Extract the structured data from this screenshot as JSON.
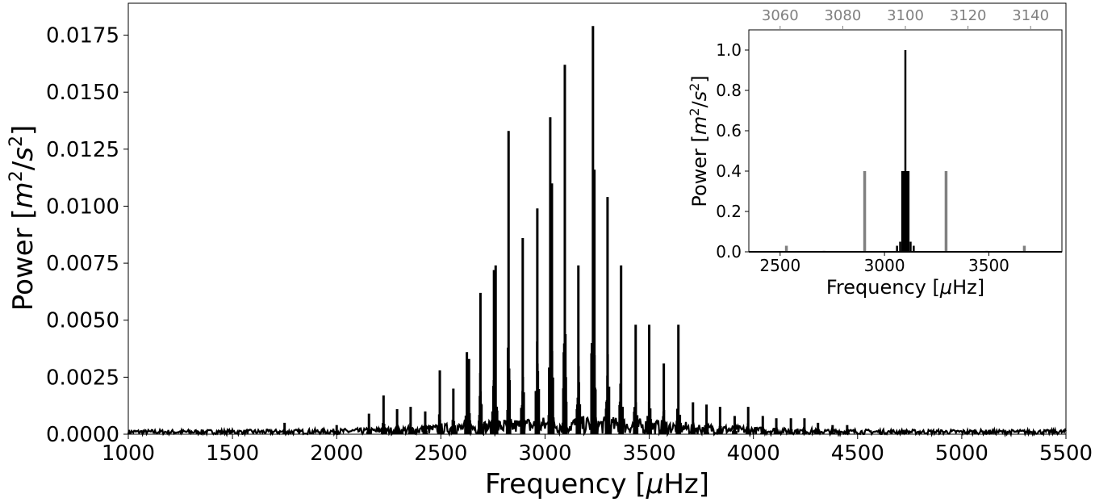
{
  "chart_data": [
    {
      "type": "line",
      "title": "",
      "xlabel": {
        "prefix": "Frequency [",
        "mu": "μ",
        "suffix": "Hz]"
      },
      "ylabel": {
        "prefix": "Power [",
        "base1": "m",
        "exp1": "2",
        "slash": "/",
        "base2": "s",
        "exp2": "2",
        "suffix": "]"
      },
      "xlim": [
        1000,
        5500
      ],
      "ylim": [
        0,
        0.0189
      ],
      "xticks": [
        1000,
        1500,
        2000,
        2500,
        3000,
        3500,
        4000,
        4500,
        5000,
        5500
      ],
      "xtick_labels": [
        "1000",
        "1500",
        "2000",
        "2500",
        "3000",
        "3500",
        "4000",
        "4500",
        "5000",
        "5500"
      ],
      "yticks": [
        0,
        0.0025,
        0.005,
        0.0075,
        0.01,
        0.0125,
        0.015,
        0.0175
      ],
      "ytick_labels": [
        "0.0000",
        "0.0025",
        "0.0050",
        "0.0075",
        "0.0100",
        "0.0125",
        "0.0150",
        "0.0175"
      ],
      "series": [
        {
          "color": "#000000",
          "noise_floor": 0.0002,
          "peaks": [
            {
              "x": 2155,
              "y": 0.0009
            },
            {
              "x": 2225,
              "y": 0.0017
            },
            {
              "x": 2290,
              "y": 0.0011
            },
            {
              "x": 2355,
              "y": 0.0012
            },
            {
              "x": 2425,
              "y": 0.001
            },
            {
              "x": 2495,
              "y": 0.0028
            },
            {
              "x": 2560,
              "y": 0.002
            },
            {
              "x": 2625,
              "y": 0.0036
            },
            {
              "x": 2635,
              "y": 0.0033
            },
            {
              "x": 2690,
              "y": 0.0062
            },
            {
              "x": 2755,
              "y": 0.0072
            },
            {
              "x": 2763,
              "y": 0.0074
            },
            {
              "x": 2825,
              "y": 0.0133
            },
            {
              "x": 2893,
              "y": 0.0086
            },
            {
              "x": 2963,
              "y": 0.0099
            },
            {
              "x": 3025,
              "y": 0.0139
            },
            {
              "x": 3033,
              "y": 0.011
            },
            {
              "x": 3095,
              "y": 0.0162
            },
            {
              "x": 3160,
              "y": 0.0074
            },
            {
              "x": 3230,
              "y": 0.0179
            },
            {
              "x": 3237,
              "y": 0.0116
            },
            {
              "x": 3300,
              "y": 0.0104
            },
            {
              "x": 3365,
              "y": 0.0074
            },
            {
              "x": 3435,
              "y": 0.0048
            },
            {
              "x": 3500,
              "y": 0.0048
            },
            {
              "x": 3570,
              "y": 0.0031
            },
            {
              "x": 3640,
              "y": 0.0048
            },
            {
              "x": 3710,
              "y": 0.0014
            },
            {
              "x": 3775,
              "y": 0.0013
            },
            {
              "x": 3840,
              "y": 0.0012
            },
            {
              "x": 3910,
              "y": 0.0008
            },
            {
              "x": 3975,
              "y": 0.0012
            },
            {
              "x": 4045,
              "y": 0.0008
            },
            {
              "x": 4110,
              "y": 0.0007
            },
            {
              "x": 4180,
              "y": 0.0007
            },
            {
              "x": 4245,
              "y": 0.0007
            },
            {
              "x": 4310,
              "y": 0.0005
            },
            {
              "x": 4380,
              "y": 0.0004
            },
            {
              "x": 4450,
              "y": 0.0004
            },
            {
              "x": 1750,
              "y": 0.0005
            },
            {
              "x": 2000,
              "y": 0.0004
            }
          ]
        }
      ]
    },
    {
      "type": "line",
      "title": "",
      "xlabel": {
        "prefix": "Frequency [",
        "mu": "μ",
        "suffix": "Hz]"
      },
      "ylabel": {
        "prefix": "Power [",
        "base1": "m",
        "exp1": "2",
        "slash": "/",
        "base2": "s",
        "exp2": "2",
        "suffix": "]"
      },
      "xlim": [
        2350,
        3850
      ],
      "ylim": [
        0,
        1.1
      ],
      "xticks": [
        2500,
        3000,
        3500
      ],
      "xtick_labels": [
        "2500",
        "3000",
        "3500"
      ],
      "yticks": [
        0,
        0.2,
        0.4,
        0.6,
        0.8,
        1.0
      ],
      "ytick_labels": [
        "0.0",
        "0.2",
        "0.4",
        "0.6",
        "0.8",
        "1.0"
      ],
      "top_axis": {
        "xlim": [
          3050,
          3150
        ],
        "xticks": [
          3060,
          3080,
          3100,
          3120,
          3140
        ],
        "xtick_labels": [
          "3060",
          "3080",
          "3100",
          "3120",
          "3140"
        ],
        "color": "#808080"
      },
      "series": [
        {
          "axis": "top",
          "color": "#808080",
          "peaks": [
            {
              "x": 3062,
              "y": 0.03
            },
            {
              "x": 3074,
              "y": 0.005
            },
            {
              "x": 3087,
              "y": 0.4
            },
            {
              "x": 3100,
              "y": 0.4
            },
            {
              "x": 3113,
              "y": 0.4
            },
            {
              "x": 3126,
              "y": 0.005
            },
            {
              "x": 3138,
              "y": 0.03
            }
          ]
        },
        {
          "axis": "bottom",
          "color": "#000000",
          "peaks": [
            {
              "x": 3060,
              "y": 0.03
            },
            {
              "x": 3075,
              "y": 0.05
            },
            {
              "x": 3085,
              "y": 0.4
            },
            {
              "x": 3095,
              "y": 0.4
            },
            {
              "x": 3100,
              "y": 1.0
            },
            {
              "x": 3105,
              "y": 0.4
            },
            {
              "x": 3115,
              "y": 0.4
            },
            {
              "x": 3125,
              "y": 0.05
            },
            {
              "x": 3140,
              "y": 0.03
            }
          ]
        }
      ]
    }
  ]
}
